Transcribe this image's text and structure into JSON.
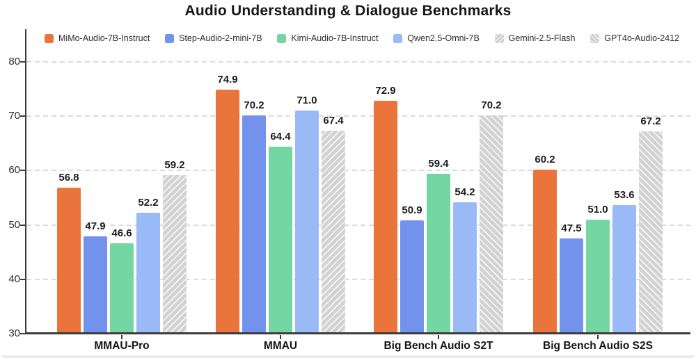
{
  "chart_data": {
    "type": "bar",
    "title": "Audio Understanding & Dialogue Benchmarks",
    "categories": [
      "MMAU-Pro",
      "MMAU",
      "Big Bench Audio S2T",
      "Big Bench Audio S2S"
    ],
    "series": [
      {
        "name": "MiMo-Audio-7B-Instruct",
        "style": "solid",
        "color": "#EA743B",
        "values": [
          56.8,
          74.9,
          72.9,
          60.2
        ],
        "labels": [
          "56.8",
          "74.9",
          "72.9",
          "60.2"
        ]
      },
      {
        "name": "Step-Audio-2-mini-7B",
        "style": "solid",
        "color": "#7392ED",
        "values": [
          47.9,
          70.2,
          50.9,
          47.5
        ],
        "labels": [
          "47.9",
          "70.2",
          "50.9",
          "47.5"
        ]
      },
      {
        "name": "Kimi-Audio-7B-Instruct",
        "style": "solid",
        "color": "#74D6A2",
        "values": [
          46.6,
          64.4,
          59.4,
          51.0
        ],
        "labels": [
          "46.6",
          "64.4",
          "59.4",
          "51.0"
        ]
      },
      {
        "name": "Qwen2.5-Omni-7B",
        "style": "solid",
        "color": "#9ABAF7",
        "values": [
          52.2,
          71.0,
          54.2,
          53.6
        ],
        "labels": [
          "52.2",
          "71.0",
          "54.2",
          "53.6"
        ]
      },
      {
        "name": "Gemini-2.5-Flash",
        "style": "hatch-forward",
        "color": "#D3D3D3",
        "values": [
          59.2,
          67.4,
          null,
          null
        ],
        "labels": [
          "59.2",
          "67.4",
          null,
          null
        ]
      },
      {
        "name": "GPT4o-Audio-2412",
        "style": "hatch-back",
        "color": "#D3D3D3",
        "values": [
          null,
          null,
          70.2,
          67.2
        ],
        "labels": [
          null,
          null,
          "70.2",
          "67.2"
        ]
      }
    ],
    "ylim": [
      30,
      86
    ],
    "yticks": [
      "30",
      "40",
      "50",
      "60",
      "70",
      "80"
    ],
    "grid": "horizontal-dashed",
    "legend_position": "top",
    "colors": {
      "axis": "#3c3c3c",
      "gridline": "#dbdbdb",
      "text": "#1c1c1c",
      "background": "#ffffff"
    }
  }
}
